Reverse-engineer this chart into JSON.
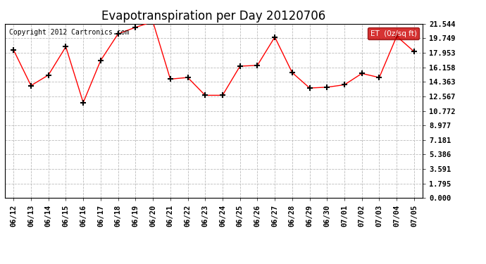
{
  "title": "Evapotranspiration per Day 20120706",
  "copyright": "Copyright 2012 Cartronics.com",
  "legend_label": "ET  (0z/sq ft)",
  "x_labels": [
    "06/12",
    "06/13",
    "06/14",
    "06/15",
    "06/16",
    "06/17",
    "06/18",
    "06/19",
    "06/20",
    "06/21",
    "06/22",
    "06/23",
    "06/24",
    "06/25",
    "06/26",
    "06/27",
    "06/28",
    "06/29",
    "06/30",
    "07/01",
    "07/02",
    "07/03",
    "07/04",
    "07/05"
  ],
  "y_values": [
    18.3,
    13.9,
    15.2,
    18.7,
    11.8,
    17.0,
    20.3,
    21.1,
    21.8,
    14.7,
    14.9,
    12.7,
    12.7,
    16.3,
    16.4,
    19.9,
    15.5,
    13.6,
    13.7,
    14.0,
    15.4,
    14.9,
    20.0,
    18.1
  ],
  "y_ticks": [
    0.0,
    1.795,
    3.591,
    5.386,
    7.181,
    8.977,
    10.772,
    12.567,
    14.363,
    16.158,
    17.953,
    19.749,
    21.544
  ],
  "ylim": [
    0.0,
    21.544
  ],
  "line_color": "red",
  "marker": "+",
  "marker_color": "black",
  "bg_color": "#ffffff",
  "plot_bg_color": "#ffffff",
  "grid_color": "#bbbbbb",
  "legend_bg": "#cc0000",
  "legend_text_color": "white",
  "title_fontsize": 12,
  "copyright_fontsize": 7,
  "tick_fontsize": 7.5,
  "markersize": 6,
  "linewidth": 1.0
}
